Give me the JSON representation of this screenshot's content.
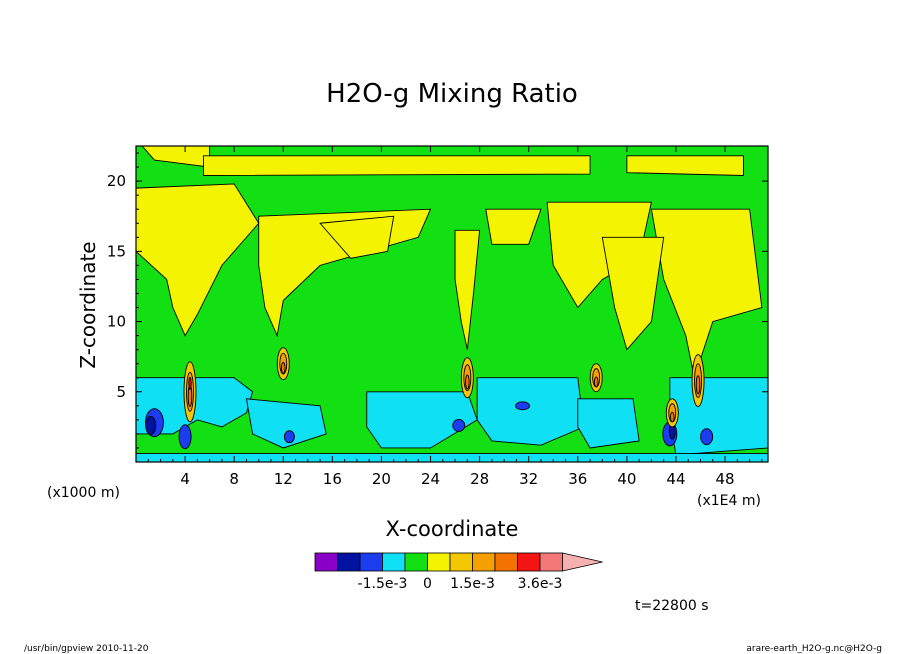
{
  "chart_data": {
    "type": "heatmap",
    "title": "H2O-g Mixing Ratio",
    "xlabel": "X-coordinate",
    "ylabel": "Z-coordinate",
    "x_unit_label": "(x1E4 m)",
    "y_unit_label": "(x1000 m)",
    "xlim": [
      0,
      51.5
    ],
    "ylim": [
      0,
      22.5
    ],
    "x_ticks": [
      "4",
      "8",
      "12",
      "16",
      "20",
      "24",
      "28",
      "32",
      "36",
      "40",
      "44",
      "48"
    ],
    "y_ticks": [
      "5",
      "10",
      "15",
      "20"
    ],
    "colorbar": {
      "colors": [
        "#8b00c8",
        "#0012a0",
        "#1c3cf0",
        "#10e0f4",
        "#12e012",
        "#f4f400",
        "#f4c800",
        "#f4a000",
        "#f47300",
        "#f41414",
        "#f47878",
        "#f7b0b0"
      ],
      "labels": [
        "-1.5e-3",
        "0",
        "1.5e-3",
        "3.6e-3"
      ]
    },
    "annotations": [
      "t=22800 s"
    ],
    "footer_left": "/usr/bin/gpview   2010-11-20",
    "footer_right": "arare-earth_H2O-g.nc@H2O-g"
  }
}
